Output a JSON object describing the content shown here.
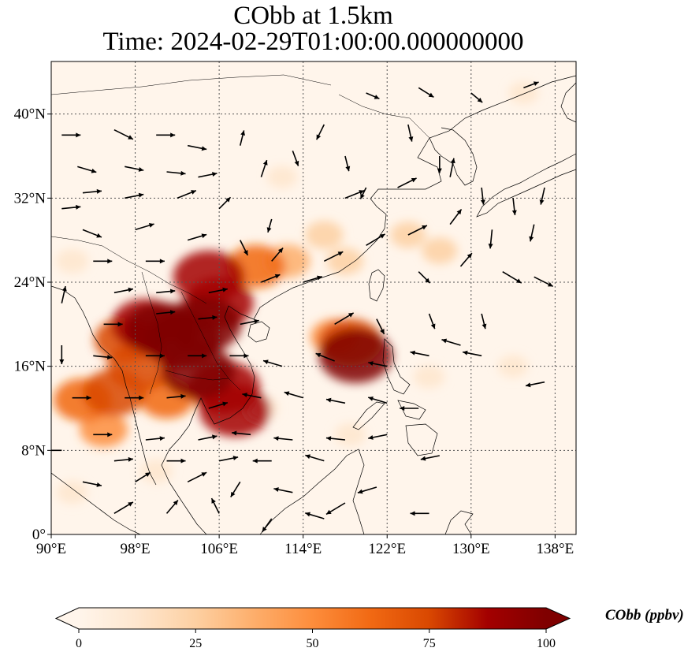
{
  "title": {
    "line1": "CObb at 1.5km",
    "line2": "Time: 2024-02-29T01:00:00.000000000"
  },
  "map": {
    "lon_range": [
      90,
      140
    ],
    "lat_range": [
      0,
      45
    ],
    "lon_ticks": [
      {
        "value": 90,
        "label": "90°E"
      },
      {
        "value": 98,
        "label": "98°E"
      },
      {
        "value": 106,
        "label": "106°E"
      },
      {
        "value": 114,
        "label": "114°E"
      },
      {
        "value": 122,
        "label": "122°E"
      },
      {
        "value": 130,
        "label": "130°E"
      },
      {
        "value": 138,
        "label": "138°E"
      }
    ],
    "lat_ticks": [
      {
        "value": 0,
        "label": "0°"
      },
      {
        "value": 8,
        "label": "8°N"
      },
      {
        "value": 16,
        "label": "16°N"
      },
      {
        "value": 24,
        "label": "24°N"
      },
      {
        "value": 32,
        "label": "32°N"
      },
      {
        "value": 40,
        "label": "40°N"
      }
    ],
    "gridlines": true,
    "plumes": [
      {
        "lon": 104.5,
        "lat": 20.0,
        "level": 100
      },
      {
        "lon": 102.5,
        "lat": 18.5,
        "level": 100
      },
      {
        "lon": 100.5,
        "lat": 19.5,
        "level": 95
      },
      {
        "lon": 104.0,
        "lat": 15.5,
        "level": 95
      },
      {
        "lon": 106.5,
        "lat": 14.0,
        "level": 90
      },
      {
        "lon": 107.5,
        "lat": 11.8,
        "level": 90
      },
      {
        "lon": 105.0,
        "lat": 24.5,
        "level": 90
      },
      {
        "lon": 106.0,
        "lat": 22.0,
        "level": 85
      },
      {
        "lon": 98.5,
        "lat": 16.0,
        "level": 80
      },
      {
        "lon": 96.0,
        "lat": 13.5,
        "level": 75
      },
      {
        "lon": 93.0,
        "lat": 12.8,
        "level": 65
      },
      {
        "lon": 99.0,
        "lat": 20.0,
        "level": 85
      },
      {
        "lon": 97.0,
        "lat": 18.5,
        "level": 70
      },
      {
        "lon": 101.0,
        "lat": 13.0,
        "level": 60
      },
      {
        "lon": 95.0,
        "lat": 10.0,
        "level": 45
      },
      {
        "lon": 109.5,
        "lat": 25.5,
        "level": 65
      },
      {
        "lon": 112.5,
        "lat": 26.0,
        "level": 40
      },
      {
        "lon": 119.0,
        "lat": 17.0,
        "level": 95
      },
      {
        "lon": 118.5,
        "lat": 18.3,
        "level": 75
      },
      {
        "lon": 117.0,
        "lat": 18.8,
        "level": 45
      },
      {
        "lon": 116.0,
        "lat": 28.5,
        "level": 25
      },
      {
        "lon": 124.0,
        "lat": 28.5,
        "level": 20
      },
      {
        "lon": 127.0,
        "lat": 27.0,
        "level": 20
      },
      {
        "lon": 118.0,
        "lat": 26.0,
        "level": 22
      },
      {
        "lon": 92.0,
        "lat": 26.0,
        "level": 15
      },
      {
        "lon": 110.0,
        "lat": 12.0,
        "level": 18
      },
      {
        "lon": 118.5,
        "lat": 9.5,
        "level": 12
      },
      {
        "lon": 126.0,
        "lat": 15.0,
        "level": 12
      },
      {
        "lon": 134.0,
        "lat": 16.0,
        "level": 10
      },
      {
        "lon": 100.0,
        "lat": 6.0,
        "level": 14
      },
      {
        "lon": 92.0,
        "lat": 4.0,
        "level": 12
      },
      {
        "lon": 112.0,
        "lat": 34.0,
        "level": 10
      },
      {
        "lon": 135.0,
        "lat": 42.0,
        "level": 10
      }
    ],
    "wind": [
      {
        "lon": 91,
        "lat": 38,
        "u": 1.0,
        "v": 0.0
      },
      {
        "lon": 92.5,
        "lat": 35,
        "u": 1.0,
        "v": -0.3
      },
      {
        "lon": 93,
        "lat": 32.5,
        "u": 1.0,
        "v": 0.1
      },
      {
        "lon": 91,
        "lat": 31,
        "u": 1.0,
        "v": 0.1
      },
      {
        "lon": 93,
        "lat": 29,
        "u": 1.0,
        "v": -0.4
      },
      {
        "lon": 96,
        "lat": 38.5,
        "u": 1.0,
        "v": -0.5
      },
      {
        "lon": 97,
        "lat": 35,
        "u": 1.0,
        "v": -0.2
      },
      {
        "lon": 97,
        "lat": 32,
        "u": 1.0,
        "v": 0.2
      },
      {
        "lon": 98,
        "lat": 29,
        "u": 1.0,
        "v": 0.3
      },
      {
        "lon": 100,
        "lat": 38,
        "u": 1.0,
        "v": 0.0
      },
      {
        "lon": 101,
        "lat": 34.5,
        "u": 1.0,
        "v": -0.1
      },
      {
        "lon": 102,
        "lat": 32,
        "u": 1.0,
        "v": 0.4
      },
      {
        "lon": 103,
        "lat": 37,
        "u": 1.0,
        "v": -0.2
      },
      {
        "lon": 104,
        "lat": 34,
        "u": 1.0,
        "v": 0.2
      },
      {
        "lon": 106,
        "lat": 31,
        "u": 0.6,
        "v": 0.6
      },
      {
        "lon": 108,
        "lat": 37,
        "u": 0.2,
        "v": 0.8
      },
      {
        "lon": 110,
        "lat": 34,
        "u": 0.3,
        "v": 0.9
      },
      {
        "lon": 111,
        "lat": 30,
        "u": -0.2,
        "v": -0.7
      },
      {
        "lon": 113,
        "lat": 36.5,
        "u": 0.3,
        "v": -0.8
      },
      {
        "lon": 116,
        "lat": 39,
        "u": -0.4,
        "v": -0.8
      },
      {
        "lon": 118,
        "lat": 36,
        "u": 0.2,
        "v": -0.8
      },
      {
        "lon": 120,
        "lat": 33,
        "u": -0.3,
        "v": -0.6
      },
      {
        "lon": 124,
        "lat": 39,
        "u": 0.2,
        "v": -0.9
      },
      {
        "lon": 127,
        "lat": 36,
        "u": 0.0,
        "v": -0.9
      },
      {
        "lon": 120,
        "lat": 42,
        "u": 0.7,
        "v": -0.3
      },
      {
        "lon": 125,
        "lat": 42.5,
        "u": 0.8,
        "v": -0.5
      },
      {
        "lon": 130,
        "lat": 42,
        "u": 0.6,
        "v": -0.5
      },
      {
        "lon": 135,
        "lat": 42.5,
        "u": 0.8,
        "v": 0.3
      },
      {
        "lon": 118,
        "lat": 32,
        "u": 1.0,
        "v": 0.4
      },
      {
        "lon": 123,
        "lat": 33,
        "u": 1.0,
        "v": 0.5
      },
      {
        "lon": 128,
        "lat": 34,
        "u": 0.2,
        "v": 1.0
      },
      {
        "lon": 131,
        "lat": 33,
        "u": 0.1,
        "v": -0.9
      },
      {
        "lon": 134,
        "lat": 32,
        "u": 0.1,
        "v": -0.9
      },
      {
        "lon": 137,
        "lat": 33,
        "u": -0.2,
        "v": -0.9
      },
      {
        "lon": 128,
        "lat": 29.5,
        "u": 0.6,
        "v": 0.8
      },
      {
        "lon": 132,
        "lat": 29,
        "u": -0.1,
        "v": -1.0
      },
      {
        "lon": 136,
        "lat": 29.5,
        "u": -0.2,
        "v": -0.9
      },
      {
        "lon": 124,
        "lat": 28.5,
        "u": 1.0,
        "v": 0.5
      },
      {
        "lon": 120,
        "lat": 27.5,
        "u": 1.0,
        "v": 0.6
      },
      {
        "lon": 116,
        "lat": 26,
        "u": 1.0,
        "v": 0.5
      },
      {
        "lon": 111,
        "lat": 26,
        "u": 0.6,
        "v": 0.7
      },
      {
        "lon": 108,
        "lat": 28,
        "u": 0.4,
        "v": -0.8
      },
      {
        "lon": 103,
        "lat": 28,
        "u": 1.0,
        "v": 0.3
      },
      {
        "lon": 99,
        "lat": 26,
        "u": 1.0,
        "v": 0.0
      },
      {
        "lon": 94,
        "lat": 26,
        "u": 1.0,
        "v": 0.0
      },
      {
        "lon": 96,
        "lat": 23,
        "u": 1.0,
        "v": 0.2
      },
      {
        "lon": 100,
        "lat": 23,
        "u": 1.0,
        "v": 0.1
      },
      {
        "lon": 105,
        "lat": 23,
        "u": 1.0,
        "v": 0.2
      },
      {
        "lon": 110,
        "lat": 24,
        "u": 1.0,
        "v": 0.4
      },
      {
        "lon": 114,
        "lat": 24,
        "u": 1.0,
        "v": 0.3
      },
      {
        "lon": 125,
        "lat": 25,
        "u": 0.6,
        "v": -0.6
      },
      {
        "lon": 129,
        "lat": 25.5,
        "u": 0.6,
        "v": 0.7
      },
      {
        "lon": 133,
        "lat": 25,
        "u": 1.0,
        "v": -0.6
      },
      {
        "lon": 136,
        "lat": 24.5,
        "u": 1.0,
        "v": -0.5
      },
      {
        "lon": 91,
        "lat": 22,
        "u": 0.2,
        "v": 0.9
      },
      {
        "lon": 95,
        "lat": 20,
        "u": 1.0,
        "v": 0.0
      },
      {
        "lon": 100,
        "lat": 21,
        "u": 1.0,
        "v": 0.1
      },
      {
        "lon": 104,
        "lat": 20.5,
        "u": 1.0,
        "v": 0.1
      },
      {
        "lon": 108,
        "lat": 20,
        "u": 1.0,
        "v": 0.2
      },
      {
        "lon": 117,
        "lat": 20,
        "u": 1.0,
        "v": 0.6
      },
      {
        "lon": 121,
        "lat": 20.5,
        "u": 0.4,
        "v": -0.8
      },
      {
        "lon": 126,
        "lat": 21,
        "u": 0.3,
        "v": -0.8
      },
      {
        "lon": 131,
        "lat": 21,
        "u": 0.2,
        "v": -0.8
      },
      {
        "lon": 91,
        "lat": 18,
        "u": 0.0,
        "v": -1.0
      },
      {
        "lon": 94,
        "lat": 17,
        "u": 1.0,
        "v": -0.1
      },
      {
        "lon": 99,
        "lat": 17,
        "u": 1.0,
        "v": 0.0
      },
      {
        "lon": 103,
        "lat": 17,
        "u": 1.0,
        "v": 0.0
      },
      {
        "lon": 107,
        "lat": 17,
        "u": 1.0,
        "v": 0.0
      },
      {
        "lon": 112,
        "lat": 16,
        "u": -1.0,
        "v": 0.3
      },
      {
        "lon": 117,
        "lat": 16.5,
        "u": -1.0,
        "v": 0.4
      },
      {
        "lon": 122,
        "lat": 16,
        "u": -1.0,
        "v": 0.2
      },
      {
        "lon": 126,
        "lat": 17,
        "u": -1.0,
        "v": 0.2
      },
      {
        "lon": 129,
        "lat": 18,
        "u": -1.0,
        "v": 0.3
      },
      {
        "lon": 131,
        "lat": 17,
        "u": -1.0,
        "v": 0.2
      },
      {
        "lon": 137,
        "lat": 14.5,
        "u": -1.0,
        "v": -0.2
      },
      {
        "lon": 92,
        "lat": 13,
        "u": 1.0,
        "v": 0.0
      },
      {
        "lon": 97,
        "lat": 13,
        "u": 1.0,
        "v": 0.0
      },
      {
        "lon": 101,
        "lat": 13,
        "u": 1.0,
        "v": 0.1
      },
      {
        "lon": 105,
        "lat": 12,
        "u": 1.0,
        "v": 0.3
      },
      {
        "lon": 110,
        "lat": 13,
        "u": -1.0,
        "v": 0.2
      },
      {
        "lon": 114,
        "lat": 13,
        "u": -1.0,
        "v": 0.3
      },
      {
        "lon": 118,
        "lat": 12.5,
        "u": -1.0,
        "v": 0.2
      },
      {
        "lon": 122,
        "lat": 12.5,
        "u": -1.0,
        "v": 0.3
      },
      {
        "lon": 125,
        "lat": 12,
        "u": -1.0,
        "v": 0.0
      },
      {
        "lon": 94,
        "lat": 9.5,
        "u": 1.0,
        "v": 0.0
      },
      {
        "lon": 99,
        "lat": 9,
        "u": 1.0,
        "v": 0.1
      },
      {
        "lon": 104,
        "lat": 9,
        "u": 1.0,
        "v": 0.2
      },
      {
        "lon": 109,
        "lat": 9.5,
        "u": -1.0,
        "v": 0.1
      },
      {
        "lon": 113,
        "lat": 9,
        "u": -1.0,
        "v": 0.1
      },
      {
        "lon": 118,
        "lat": 9,
        "u": -1.0,
        "v": 0.1
      },
      {
        "lon": 122,
        "lat": 9.5,
        "u": -1.0,
        "v": -0.2
      },
      {
        "lon": 127,
        "lat": 7.5,
        "u": -1.0,
        "v": -0.2
      },
      {
        "lon": 91,
        "lat": 8,
        "u": -1.0,
        "v": 0.0
      },
      {
        "lon": 96,
        "lat": 7,
        "u": 1.0,
        "v": 0.1
      },
      {
        "lon": 101,
        "lat": 7,
        "u": 1.0,
        "v": 0.0
      },
      {
        "lon": 106,
        "lat": 7,
        "u": 1.0,
        "v": 0.2
      },
      {
        "lon": 111,
        "lat": 7,
        "u": -1.0,
        "v": 0.0
      },
      {
        "lon": 116,
        "lat": 7,
        "u": -1.0,
        "v": 0.3
      },
      {
        "lon": 121,
        "lat": 4.5,
        "u": -1.0,
        "v": -0.3
      },
      {
        "lon": 93,
        "lat": 5,
        "u": 1.0,
        "v": -0.2
      },
      {
        "lon": 98,
        "lat": 5,
        "u": 0.8,
        "v": 0.5
      },
      {
        "lon": 103,
        "lat": 5,
        "u": 1.0,
        "v": 0.5
      },
      {
        "lon": 108,
        "lat": 5,
        "u": -0.5,
        "v": -0.8
      },
      {
        "lon": 113,
        "lat": 4,
        "u": -1.0,
        "v": 0.2
      },
      {
        "lon": 118,
        "lat": 3,
        "u": -1.0,
        "v": -0.6
      },
      {
        "lon": 96,
        "lat": 2,
        "u": 1.0,
        "v": 0.6
      },
      {
        "lon": 101,
        "lat": 2,
        "u": 0.6,
        "v": 0.7
      },
      {
        "lon": 106,
        "lat": 2,
        "u": -0.4,
        "v": 0.8
      },
      {
        "lon": 111,
        "lat": 1.5,
        "u": -0.5,
        "v": -0.7
      },
      {
        "lon": 116,
        "lat": 1.5,
        "u": -1.0,
        "v": 0.3
      },
      {
        "lon": 126,
        "lat": 2,
        "u": -1.0,
        "v": 0.0
      }
    ]
  },
  "colorbar": {
    "title": "CObb (ppbv)",
    "min": 0,
    "max": 100,
    "ticks": [
      {
        "value": 0,
        "label": "0"
      },
      {
        "value": 25,
        "label": "25"
      },
      {
        "value": 50,
        "label": "50"
      },
      {
        "value": 75,
        "label": "75"
      },
      {
        "value": 100,
        "label": "100"
      }
    ],
    "colormap": [
      "#fff5eb",
      "#fee6ce",
      "#fdd0a2",
      "#fdae6b",
      "#fd8d3c",
      "#f16913",
      "#d94801",
      "#a30000",
      "#7f0000"
    ],
    "extend": "both"
  }
}
